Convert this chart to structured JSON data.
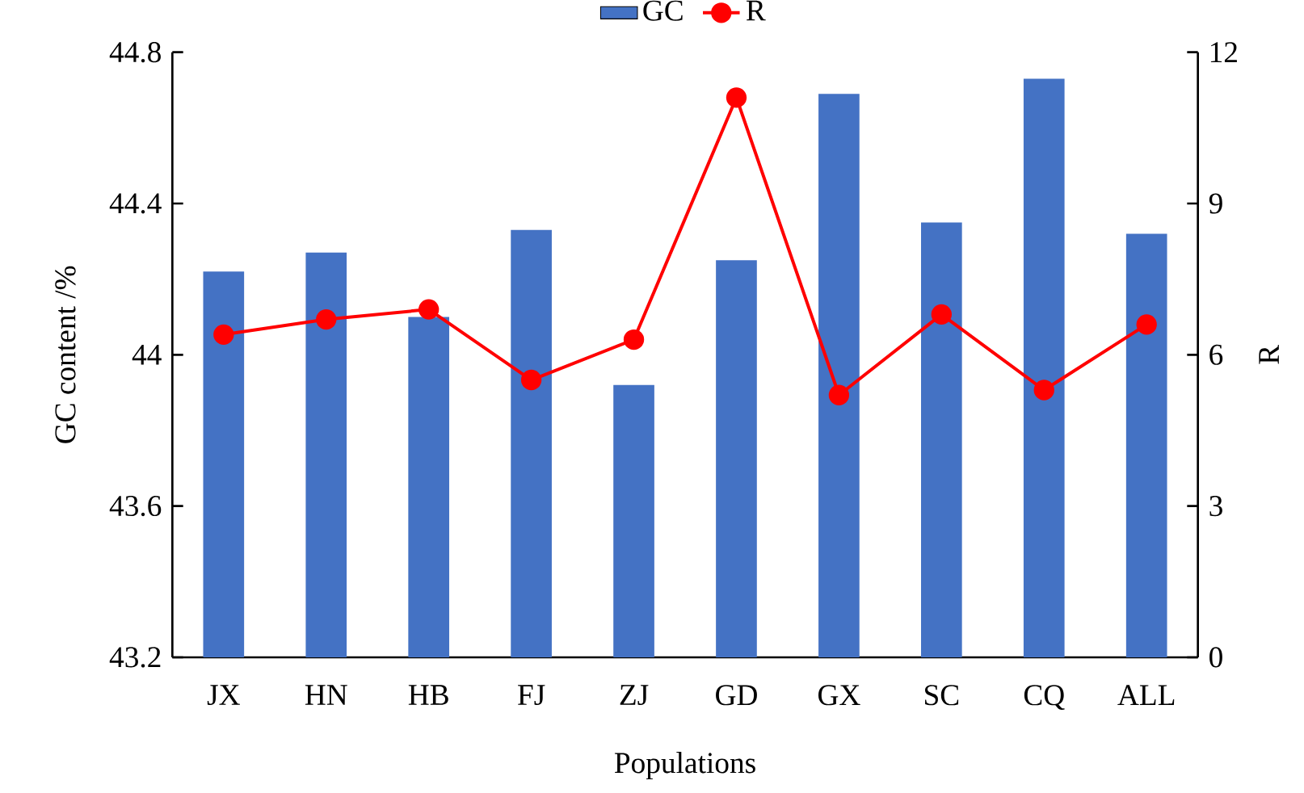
{
  "chart_data": {
    "type": "bar",
    "xlabel": "Populations",
    "ylabel": "GC content /%",
    "y2label": "R",
    "categories": [
      "JX",
      "HN",
      "HB",
      "FJ",
      "ZJ",
      "GD",
      "GX",
      "SC",
      "CQ",
      "ALL"
    ],
    "series": [
      {
        "name": "GC",
        "color": "#4472c4",
        "values": [
          44.22,
          44.27,
          44.1,
          44.33,
          43.92,
          44.25,
          44.69,
          44.35,
          44.73,
          44.32
        ]
      },
      {
        "name": "R",
        "type": "line",
        "axis": "y2",
        "color": "#ff0000",
        "marker": "circle",
        "values": [
          6.4,
          6.7,
          6.9,
          5.5,
          6.3,
          11.1,
          5.2,
          6.8,
          5.3,
          6.6
        ]
      }
    ],
    "ylim": [
      43.2,
      44.8
    ],
    "yticks": [
      43.2,
      43.6,
      44,
      44.4,
      44.8
    ],
    "y2lim": [
      0,
      12
    ],
    "y2ticks": [
      0,
      3,
      6,
      9,
      12
    ],
    "legend": "top"
  }
}
